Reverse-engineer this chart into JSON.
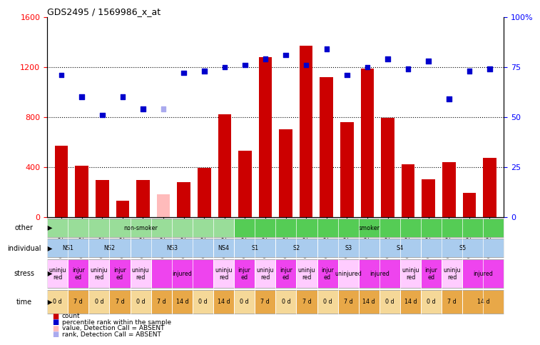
{
  "title": "GDS2495 / 1569986_x_at",
  "samples": [
    "GSM122528",
    "GSM122531",
    "GSM122539",
    "GSM122540",
    "GSM122541",
    "GSM122542",
    "GSM122543",
    "GSM122544",
    "GSM122546",
    "GSM122527",
    "GSM122529",
    "GSM122530",
    "GSM122532",
    "GSM122533",
    "GSM122535",
    "GSM122536",
    "GSM122538",
    "GSM122534",
    "GSM122537",
    "GSM122545",
    "GSM122547",
    "GSM122548"
  ],
  "bar_values": [
    570,
    410,
    295,
    130,
    295,
    180,
    280,
    390,
    820,
    530,
    1280,
    700,
    1370,
    1120,
    760,
    1190,
    790,
    420,
    300,
    440,
    190,
    470
  ],
  "bar_absent": [
    false,
    false,
    false,
    false,
    false,
    true,
    false,
    false,
    false,
    false,
    false,
    false,
    false,
    false,
    false,
    false,
    false,
    false,
    false,
    false,
    false,
    false
  ],
  "rank_values": [
    71,
    60,
    51,
    60,
    54,
    54,
    72,
    73,
    75,
    76,
    79,
    81,
    76,
    84,
    71,
    75,
    79,
    74,
    78,
    59,
    73,
    74
  ],
  "rank_absent": [
    false,
    false,
    false,
    false,
    false,
    true,
    false,
    false,
    false,
    false,
    false,
    false,
    false,
    false,
    false,
    false,
    false,
    false,
    false,
    false,
    false,
    false
  ],
  "ylim_left": [
    0,
    1600
  ],
  "ylim_right": [
    0,
    100
  ],
  "yticks_left": [
    0,
    400,
    800,
    1200,
    1600
  ],
  "yticks_right": [
    0,
    25,
    50,
    75,
    100
  ],
  "bar_color": "#cc0000",
  "bar_absent_color": "#ffbbbb",
  "rank_color": "#0000cc",
  "rank_absent_color": "#aaaaee",
  "other_row": {
    "label": "other",
    "groups": [
      {
        "text": "non-smoker",
        "start": 0,
        "end": 8,
        "color": "#99dd99"
      },
      {
        "text": "smoker",
        "start": 9,
        "end": 21,
        "color": "#55cc55"
      }
    ]
  },
  "individual_row": {
    "label": "individual",
    "groups": [
      {
        "text": "NS1",
        "start": 0,
        "end": 1,
        "color": "#aaccee"
      },
      {
        "text": "NS2",
        "start": 2,
        "end": 3,
        "color": "#aaccee"
      },
      {
        "text": "NS3",
        "start": 4,
        "end": 7,
        "color": "#aaccee"
      },
      {
        "text": "NS4",
        "start": 8,
        "end": 8,
        "color": "#aaccee"
      },
      {
        "text": "S1",
        "start": 9,
        "end": 10,
        "color": "#aaccee"
      },
      {
        "text": "S2",
        "start": 11,
        "end": 12,
        "color": "#aaccee"
      },
      {
        "text": "S3",
        "start": 13,
        "end": 15,
        "color": "#aaccee"
      },
      {
        "text": "S4",
        "start": 16,
        "end": 17,
        "color": "#aaccee"
      },
      {
        "text": "S5",
        "start": 18,
        "end": 21,
        "color": "#aaccee"
      }
    ]
  },
  "stress_row": {
    "label": "stress",
    "groups": [
      {
        "text": "uninju\nred",
        "start": 0,
        "end": 0,
        "color": "#ffccff"
      },
      {
        "text": "injur\ned",
        "start": 1,
        "end": 1,
        "color": "#ee44ee"
      },
      {
        "text": "uninju\nred",
        "start": 2,
        "end": 2,
        "color": "#ffccff"
      },
      {
        "text": "injur\ned",
        "start": 3,
        "end": 3,
        "color": "#ee44ee"
      },
      {
        "text": "uninju\nred",
        "start": 4,
        "end": 4,
        "color": "#ffccff"
      },
      {
        "text": "injured",
        "start": 5,
        "end": 7,
        "color": "#ee44ee"
      },
      {
        "text": "uninju\nred",
        "start": 8,
        "end": 8,
        "color": "#ffccff"
      },
      {
        "text": "injur\ned",
        "start": 9,
        "end": 9,
        "color": "#ee44ee"
      },
      {
        "text": "uninju\nred",
        "start": 10,
        "end": 10,
        "color": "#ffccff"
      },
      {
        "text": "injur\ned",
        "start": 11,
        "end": 11,
        "color": "#ee44ee"
      },
      {
        "text": "uninju\nred",
        "start": 12,
        "end": 12,
        "color": "#ffccff"
      },
      {
        "text": "injur\ned",
        "start": 13,
        "end": 13,
        "color": "#ee44ee"
      },
      {
        "text": "uninjured",
        "start": 14,
        "end": 14,
        "color": "#ffccff"
      },
      {
        "text": "injured",
        "start": 15,
        "end": 16,
        "color": "#ee44ee"
      },
      {
        "text": "uninju\nred",
        "start": 17,
        "end": 17,
        "color": "#ffccff"
      },
      {
        "text": "injur\ned",
        "start": 18,
        "end": 18,
        "color": "#ee44ee"
      },
      {
        "text": "uninju\nred",
        "start": 19,
        "end": 19,
        "color": "#ffccff"
      },
      {
        "text": "injured",
        "start": 20,
        "end": 21,
        "color": "#ee44ee"
      }
    ]
  },
  "time_row": {
    "label": "time",
    "groups": [
      {
        "text": "0 d",
        "start": 0,
        "end": 0,
        "color": "#f5d898"
      },
      {
        "text": "7 d",
        "start": 1,
        "end": 1,
        "color": "#e8a848"
      },
      {
        "text": "0 d",
        "start": 2,
        "end": 2,
        "color": "#f5d898"
      },
      {
        "text": "7 d",
        "start": 3,
        "end": 3,
        "color": "#e8a848"
      },
      {
        "text": "0 d",
        "start": 4,
        "end": 4,
        "color": "#f5d898"
      },
      {
        "text": "7 d",
        "start": 5,
        "end": 5,
        "color": "#e8a848"
      },
      {
        "text": "14 d",
        "start": 6,
        "end": 6,
        "color": "#e8a848"
      },
      {
        "text": "0 d",
        "start": 7,
        "end": 7,
        "color": "#f5d898"
      },
      {
        "text": "14 d",
        "start": 8,
        "end": 8,
        "color": "#e8a848"
      },
      {
        "text": "0 d",
        "start": 9,
        "end": 9,
        "color": "#f5d898"
      },
      {
        "text": "7 d",
        "start": 10,
        "end": 10,
        "color": "#e8a848"
      },
      {
        "text": "0 d",
        "start": 11,
        "end": 11,
        "color": "#f5d898"
      },
      {
        "text": "7 d",
        "start": 12,
        "end": 12,
        "color": "#e8a848"
      },
      {
        "text": "0 d",
        "start": 13,
        "end": 13,
        "color": "#f5d898"
      },
      {
        "text": "7 d",
        "start": 14,
        "end": 14,
        "color": "#e8a848"
      },
      {
        "text": "14 d",
        "start": 15,
        "end": 15,
        "color": "#e8a848"
      },
      {
        "text": "0 d",
        "start": 16,
        "end": 16,
        "color": "#f5d898"
      },
      {
        "text": "14 d",
        "start": 17,
        "end": 17,
        "color": "#e8a848"
      },
      {
        "text": "0 d",
        "start": 18,
        "end": 18,
        "color": "#f5d898"
      },
      {
        "text": "7 d",
        "start": 19,
        "end": 19,
        "color": "#e8a848"
      },
      {
        "text": "14 d",
        "start": 20,
        "end": 21,
        "color": "#e8a848"
      }
    ]
  },
  "legend_items": [
    {
      "label": "count",
      "color": "#cc0000"
    },
    {
      "label": "percentile rank within the sample",
      "color": "#0000cc"
    },
    {
      "label": "value, Detection Call = ABSENT",
      "color": "#ffbbbb"
    },
    {
      "label": "rank, Detection Call = ABSENT",
      "color": "#aaaaee"
    }
  ]
}
